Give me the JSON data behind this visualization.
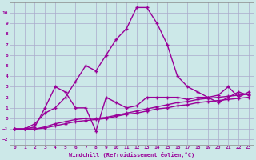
{
  "background_color": "#cce8e8",
  "grid_color": "#aaaacc",
  "line_color": "#990099",
  "xlabel": "Windchill (Refroidissement éolien,°C)",
  "xlim": [
    -0.5,
    23.5
  ],
  "ylim": [
    -2.5,
    11
  ],
  "xticks": [
    0,
    1,
    2,
    3,
    4,
    5,
    6,
    7,
    8,
    9,
    10,
    11,
    12,
    13,
    14,
    15,
    16,
    17,
    18,
    19,
    20,
    21,
    22,
    23
  ],
  "yticks": [
    -2,
    -1,
    0,
    1,
    2,
    3,
    4,
    5,
    6,
    7,
    8,
    9,
    10
  ],
  "series_peaked_x": [
    0,
    1,
    2,
    3,
    4,
    5,
    6,
    7,
    8,
    9,
    10,
    11,
    12,
    13,
    14,
    15,
    16,
    17,
    18,
    19,
    20,
    21,
    22,
    23
  ],
  "series_peaked_y": [
    -1,
    -1,
    -0.5,
    0.5,
    1,
    2,
    3.5,
    5,
    4.5,
    6,
    7.5,
    8.5,
    10.5,
    10.5,
    9,
    7,
    4,
    3,
    2.5,
    2,
    1.5,
    2,
    2.5,
    2.2
  ],
  "series_zigzag_x": [
    0,
    1,
    2,
    3,
    4,
    5,
    6,
    7,
    8,
    9,
    10,
    11,
    12,
    13,
    14,
    15,
    16,
    17,
    18,
    19,
    20,
    21,
    22,
    23
  ],
  "series_zigzag_y": [
    -1,
    -1,
    -0.8,
    1,
    3,
    2.5,
    1,
    1,
    -1.2,
    2,
    1.5,
    1,
    1.2,
    2,
    2,
    2,
    2,
    1.8,
    2,
    2,
    2.2,
    3,
    2,
    2.5
  ],
  "series_smooth1_x": [
    0,
    1,
    2,
    3,
    4,
    5,
    6,
    7,
    8,
    9,
    10,
    11,
    12,
    13,
    14,
    15,
    16,
    17,
    18,
    19,
    20,
    21,
    22,
    23
  ],
  "series_smooth1_y": [
    -1,
    -1,
    -1,
    -0.8,
    -0.5,
    -0.3,
    -0.1,
    0,
    0,
    0.1,
    0.3,
    0.5,
    0.7,
    0.9,
    1.1,
    1.3,
    1.5,
    1.6,
    1.8,
    1.9,
    2.0,
    2.1,
    2.2,
    2.3
  ],
  "series_smooth2_x": [
    0,
    1,
    2,
    3,
    4,
    5,
    6,
    7,
    8,
    9,
    10,
    11,
    12,
    13,
    14,
    15,
    16,
    17,
    18,
    19,
    20,
    21,
    22,
    23
  ],
  "series_smooth2_y": [
    -1,
    -1,
    -1,
    -0.9,
    -0.7,
    -0.5,
    -0.3,
    -0.2,
    -0.1,
    0,
    0.2,
    0.4,
    0.5,
    0.7,
    0.9,
    1.0,
    1.2,
    1.3,
    1.5,
    1.6,
    1.7,
    1.8,
    1.9,
    2.0
  ]
}
